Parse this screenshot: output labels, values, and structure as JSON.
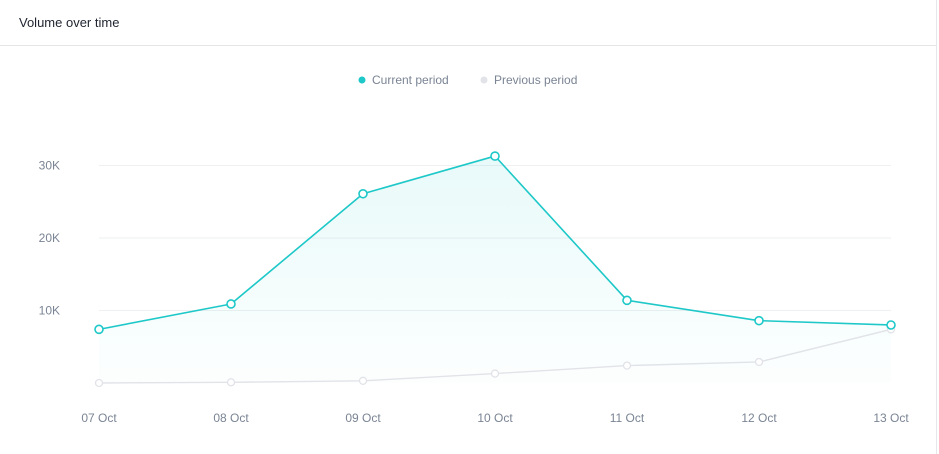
{
  "card": {
    "title": "Volume over time"
  },
  "colors": {
    "current": "#1ec8c8",
    "previous": "#e1e3e8",
    "grid": "#eef0f2",
    "text": "#7a8494"
  },
  "chart_data": {
    "type": "line",
    "x": [
      "07 Oct",
      "08 Oct",
      "09 Oct",
      "10 Oct",
      "11 Oct",
      "12 Oct",
      "13 Oct"
    ],
    "series": [
      {
        "name": "Current period",
        "values": [
          7400,
          10900,
          26100,
          31300,
          11400,
          8600,
          8000
        ]
      },
      {
        "name": "Previous period",
        "values": [
          0,
          100,
          300,
          1300,
          2400,
          2900,
          7400
        ]
      }
    ],
    "yticks": [
      10000,
      20000,
      30000
    ],
    "ytick_labels": [
      "10K",
      "20K",
      "30K"
    ],
    "ylim": [
      0,
      30000
    ],
    "grid": true,
    "legend": "top-center"
  }
}
